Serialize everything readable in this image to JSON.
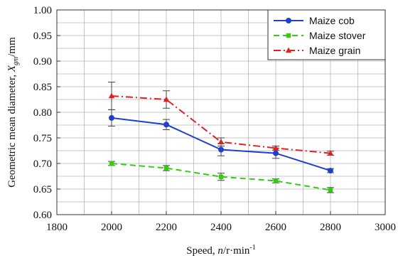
{
  "chart_data": {
    "type": "line",
    "xlabel_prefix": "Speed, ",
    "xlabel_var": "n",
    "xlabel_unit": "/r·min",
    "xlabel_sup": "-1",
    "ylabel_prefix": "Geometric mean diameter, ",
    "ylabel_var": "X",
    "ylabel_sub": "gm",
    "ylabel_unit": "/mm",
    "xlim": [
      1800,
      3000
    ],
    "ylim": [
      0.6,
      1.0
    ],
    "xticks": [
      1800,
      2000,
      2200,
      2400,
      2600,
      2800,
      3000
    ],
    "yticks": [
      "0.60",
      "0.65",
      "0.70",
      "0.75",
      "0.80",
      "0.85",
      "0.90",
      "0.95",
      "1.00"
    ],
    "grid": true,
    "legend_position": "top-right",
    "x": [
      2000,
      2200,
      2400,
      2600,
      2800
    ],
    "series": [
      {
        "name": "Maize cob",
        "values": [
          0.789,
          0.776,
          0.727,
          0.72,
          0.686
        ],
        "errors": [
          0.016,
          0.01,
          0.012,
          0.01,
          0.004
        ],
        "color": "#1f3fcf",
        "dash": "solid",
        "marker": "circle"
      },
      {
        "name": "Maize stover",
        "values": [
          0.7,
          0.691,
          0.674,
          0.666,
          0.648
        ],
        "errors": [
          0.004,
          0.005,
          0.007,
          0.004,
          0.005
        ],
        "color": "#33cc11",
        "dash": "dashed",
        "marker": "square"
      },
      {
        "name": "Maize grain",
        "values": [
          0.832,
          0.825,
          0.742,
          0.73,
          0.72
        ],
        "errors": [
          0.027,
          0.017,
          0.008,
          0.004,
          0.004
        ],
        "color": "#dd2222",
        "dash": "dashdot",
        "marker": "triangle"
      }
    ]
  }
}
